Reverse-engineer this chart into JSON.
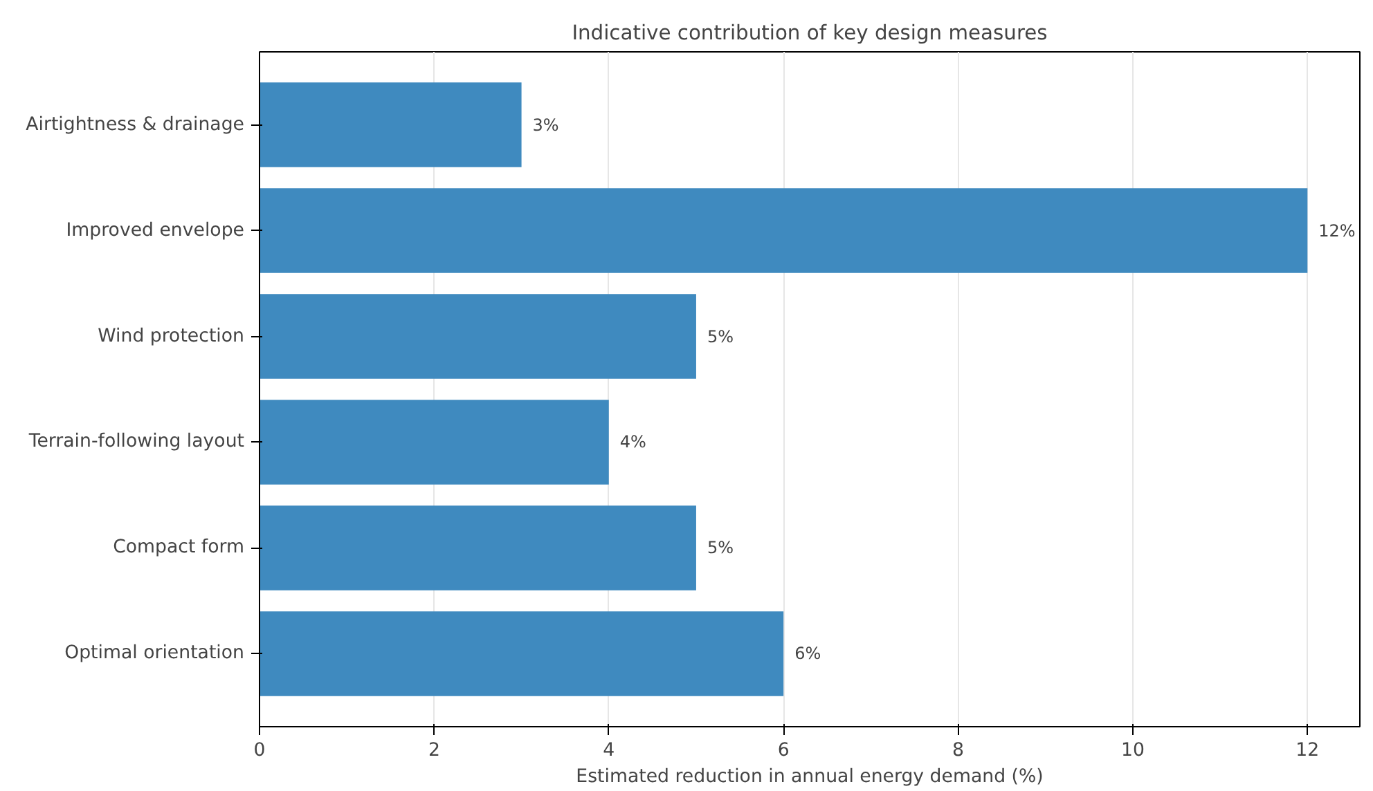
{
  "chart_data": {
    "type": "bar",
    "orientation": "horizontal",
    "title": "Indicative contribution of key design measures",
    "xlabel": "Estimated reduction in annual energy demand (%)",
    "categories": [
      "Airtightness & drainage",
      "Improved envelope",
      "Wind protection",
      "Terrain-following layout",
      "Compact form",
      "Optimal orientation"
    ],
    "values": [
      3,
      12,
      5,
      4,
      5,
      6
    ],
    "value_labels": [
      "3%",
      "12%",
      "5%",
      "4%",
      "5%",
      "6%"
    ],
    "color": "#3f8abf",
    "xlim": [
      0,
      12.6
    ],
    "xticks": [
      0,
      2,
      4,
      6,
      8,
      10,
      12
    ],
    "grid": "x"
  }
}
